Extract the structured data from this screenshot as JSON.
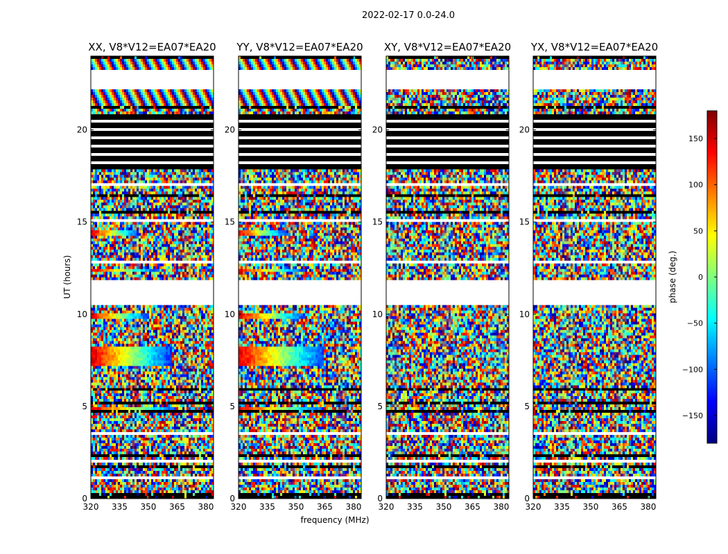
{
  "figure": {
    "suptitle": "2022-02-17 0.0-24.0",
    "xlabel": "frequency (MHz)",
    "ylabel": "UT (hours)"
  },
  "chart_data": {
    "type": "heatmap",
    "xlim": [
      320,
      384
    ],
    "ylim": [
      0,
      24
    ],
    "xticks": [
      320,
      335,
      350,
      365,
      380
    ],
    "yticks": [
      0,
      5,
      10,
      15,
      20
    ],
    "grid": false,
    "colorscale": "jet",
    "panels": [
      {
        "title": "XX, V8*V12=EA07*EA20",
        "key": "XX"
      },
      {
        "title": "YY, V8*V12=EA07*EA20",
        "key": "YY"
      },
      {
        "title": "XY, V8*V12=EA07*EA20",
        "key": "XY"
      },
      {
        "title": "YX, V8*V12=EA07*EA20",
        "key": "YX"
      }
    ],
    "colorbar": {
      "label": "phase (deg.)",
      "range": [
        -180,
        180
      ],
      "ticks": [
        -150,
        -100,
        -50,
        0,
        50,
        100,
        150
      ],
      "ticklabels": [
        "−150",
        "−100",
        "−50",
        "0",
        "50",
        "100",
        "150"
      ],
      "colors": [
        "#00007f",
        "#0000ff",
        "#007fff",
        "#00ffff",
        "#7fff7f",
        "#ffff00",
        "#ff7f00",
        "#ff0000",
        "#7f0000"
      ]
    },
    "white_bands": [
      [
        3.4,
        3.6
      ],
      [
        2.0,
        2.1
      ],
      [
        1.05,
        1.25
      ],
      [
        10.5,
        11.8
      ],
      [
        22.2,
        23.3
      ],
      [
        15.0,
        15.1
      ],
      [
        12.8,
        12.9
      ],
      [
        17.0,
        17.1
      ]
    ],
    "black_band": [
      17.9,
      20.8
    ],
    "coherent_regions": {
      "XX": [
        [
          4.6,
          4.9,
          320,
          365
        ],
        [
          7.2,
          8.2,
          320,
          362
        ],
        [
          9.7,
          10.0,
          320,
          350
        ],
        [
          12.3,
          12.5,
          320,
          355
        ],
        [
          14.3,
          14.5,
          320,
          345
        ]
      ],
      "YY": [
        [
          4.6,
          4.9,
          320,
          365
        ],
        [
          7.2,
          8.2,
          320,
          365
        ],
        [
          9.7,
          10.0,
          320,
          355
        ],
        [
          12.3,
          12.5,
          320,
          355
        ],
        [
          14.3,
          14.5,
          320,
          345
        ]
      ],
      "XY": [],
      "YX": []
    }
  }
}
